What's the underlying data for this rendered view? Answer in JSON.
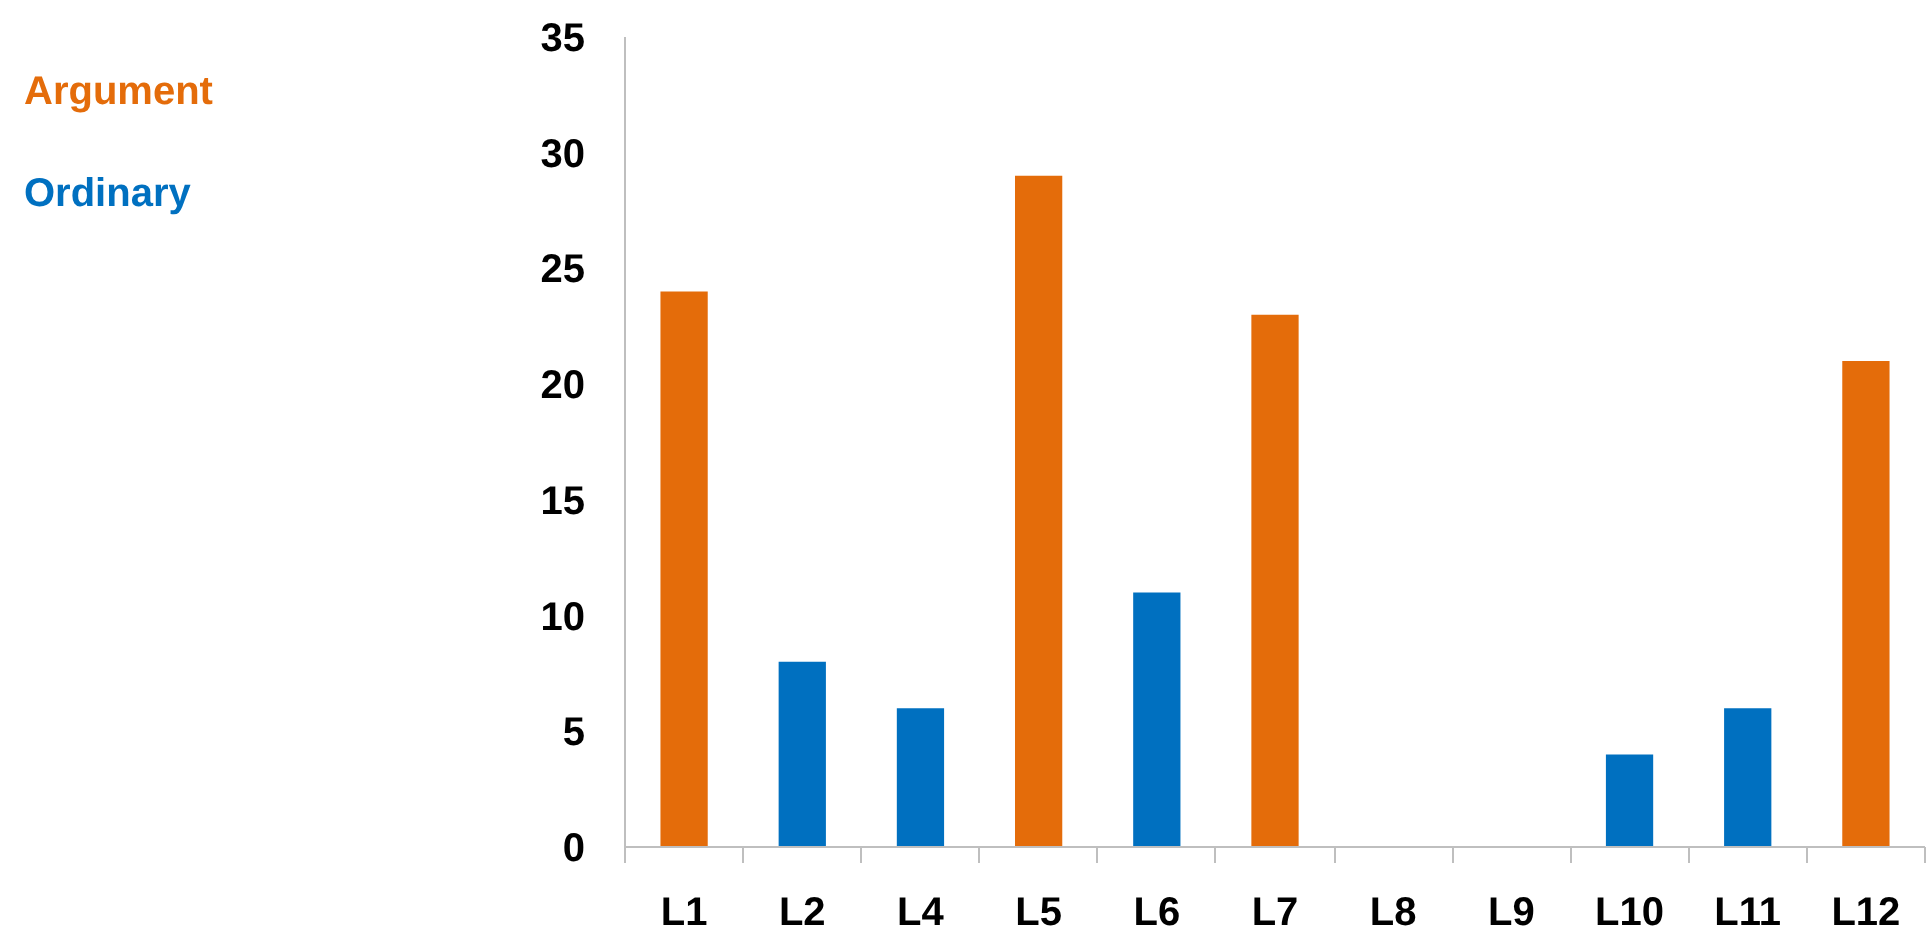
{
  "chart_data": {
    "type": "bar",
    "categories": [
      "L1",
      "L2",
      "L4",
      "L5",
      "L6",
      "L7",
      "L8",
      "L9",
      "L10",
      "L11",
      "L12"
    ],
    "series": [
      {
        "name": "Argument",
        "color": "#e46c0a",
        "values": [
          24,
          null,
          null,
          29,
          null,
          23,
          null,
          null,
          null,
          null,
          21
        ]
      },
      {
        "name": "Ordinary",
        "color": "#0070c0",
        "values": [
          null,
          8,
          6,
          null,
          11,
          null,
          null,
          null,
          4,
          6,
          null
        ]
      }
    ],
    "ylim": [
      0,
      35
    ],
    "yticks": [
      0,
      5,
      10,
      15,
      20,
      25,
      30,
      35
    ],
    "grid": false,
    "legend": "top left"
  }
}
